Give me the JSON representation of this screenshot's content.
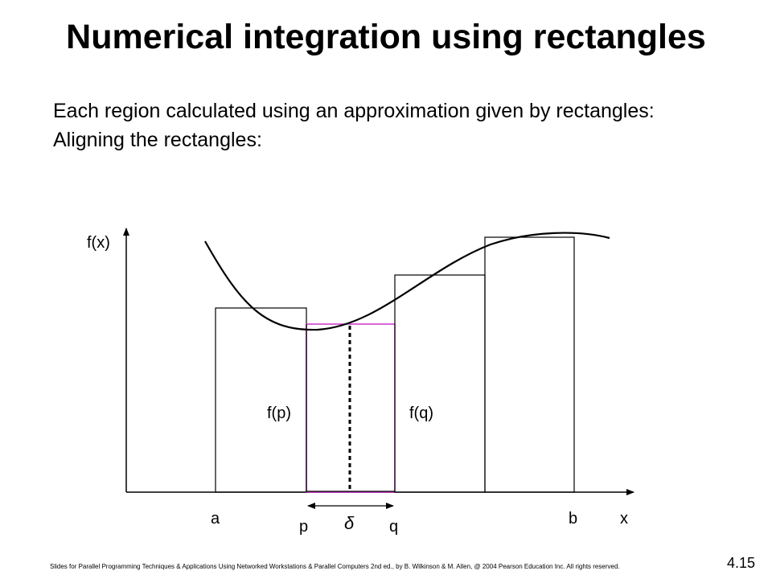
{
  "title": "Numerical integration using rectangles",
  "body": {
    "line1": "Each region calculated using an approximation given by rectangles:",
    "line2": "Aligning the rectangles:"
  },
  "diagram": {
    "y_axis_label": "f(x)",
    "x_axis_label": "x",
    "label_a": "a",
    "label_b": "b",
    "label_p": "p",
    "label_q": "q",
    "label_delta": "δ",
    "label_fp": "f(p)",
    "label_fq": "f(q)",
    "colors": {
      "outline": "#000000",
      "highlight": "#cc33cc"
    }
  },
  "footer": {
    "credit": "Slides for Parallel Programming Techniques & Applications Using Networked Workstations & Parallel Computers 2nd ed., by B. Wilkinson & M. Allen, @ 2004 Pearson Education Inc. All rights reserved.",
    "slide_number": "4.15"
  }
}
